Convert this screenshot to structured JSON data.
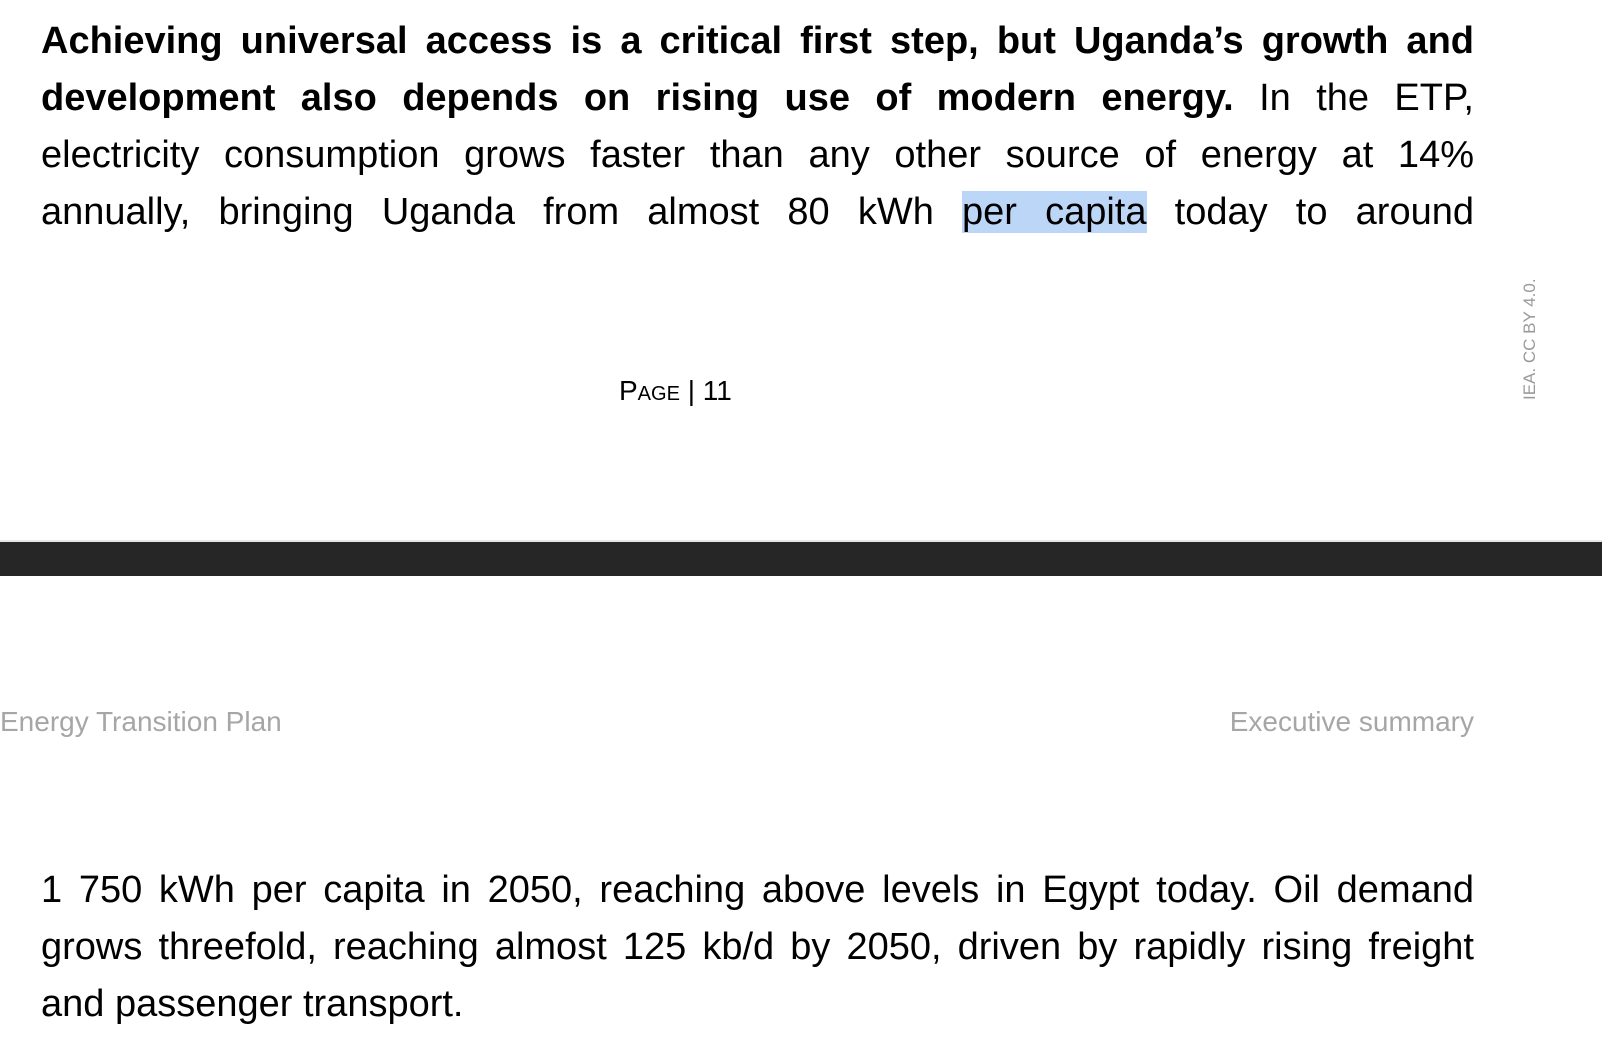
{
  "top_page": {
    "paragraph": {
      "line1_bold": "Achieving universal access is a critical first step, but Uganda’s growth and",
      "line2_bold": "development also depends on rising use of modern energy.",
      "line2_rest": " In the ETP,",
      "line3": "electricity consumption grows faster than any other source of energy at 14%",
      "line4_before": "annually, bringing Uganda from almost 80 kWh ",
      "line4_highlight": "per capita",
      "line4_after": " today to around"
    },
    "page_label_prefix": "Page",
    "page_label_sep": " | ",
    "page_number": "11",
    "side_credit": "IEA. CC BY 4.0."
  },
  "bottom_page": {
    "header_left": "Energy Transition Plan",
    "header_right": "Executive summary",
    "paragraph": "1 750 kWh per capita in 2050, reaching above levels in Egypt today. Oil demand grows threefold, reaching almost 125 kb/d by 2050, driven by rapidly rising freight and passenger transport."
  },
  "colors": {
    "highlight": "#bcd6f8",
    "page_gap": "#262626",
    "header_text": "#a6a6a6"
  }
}
